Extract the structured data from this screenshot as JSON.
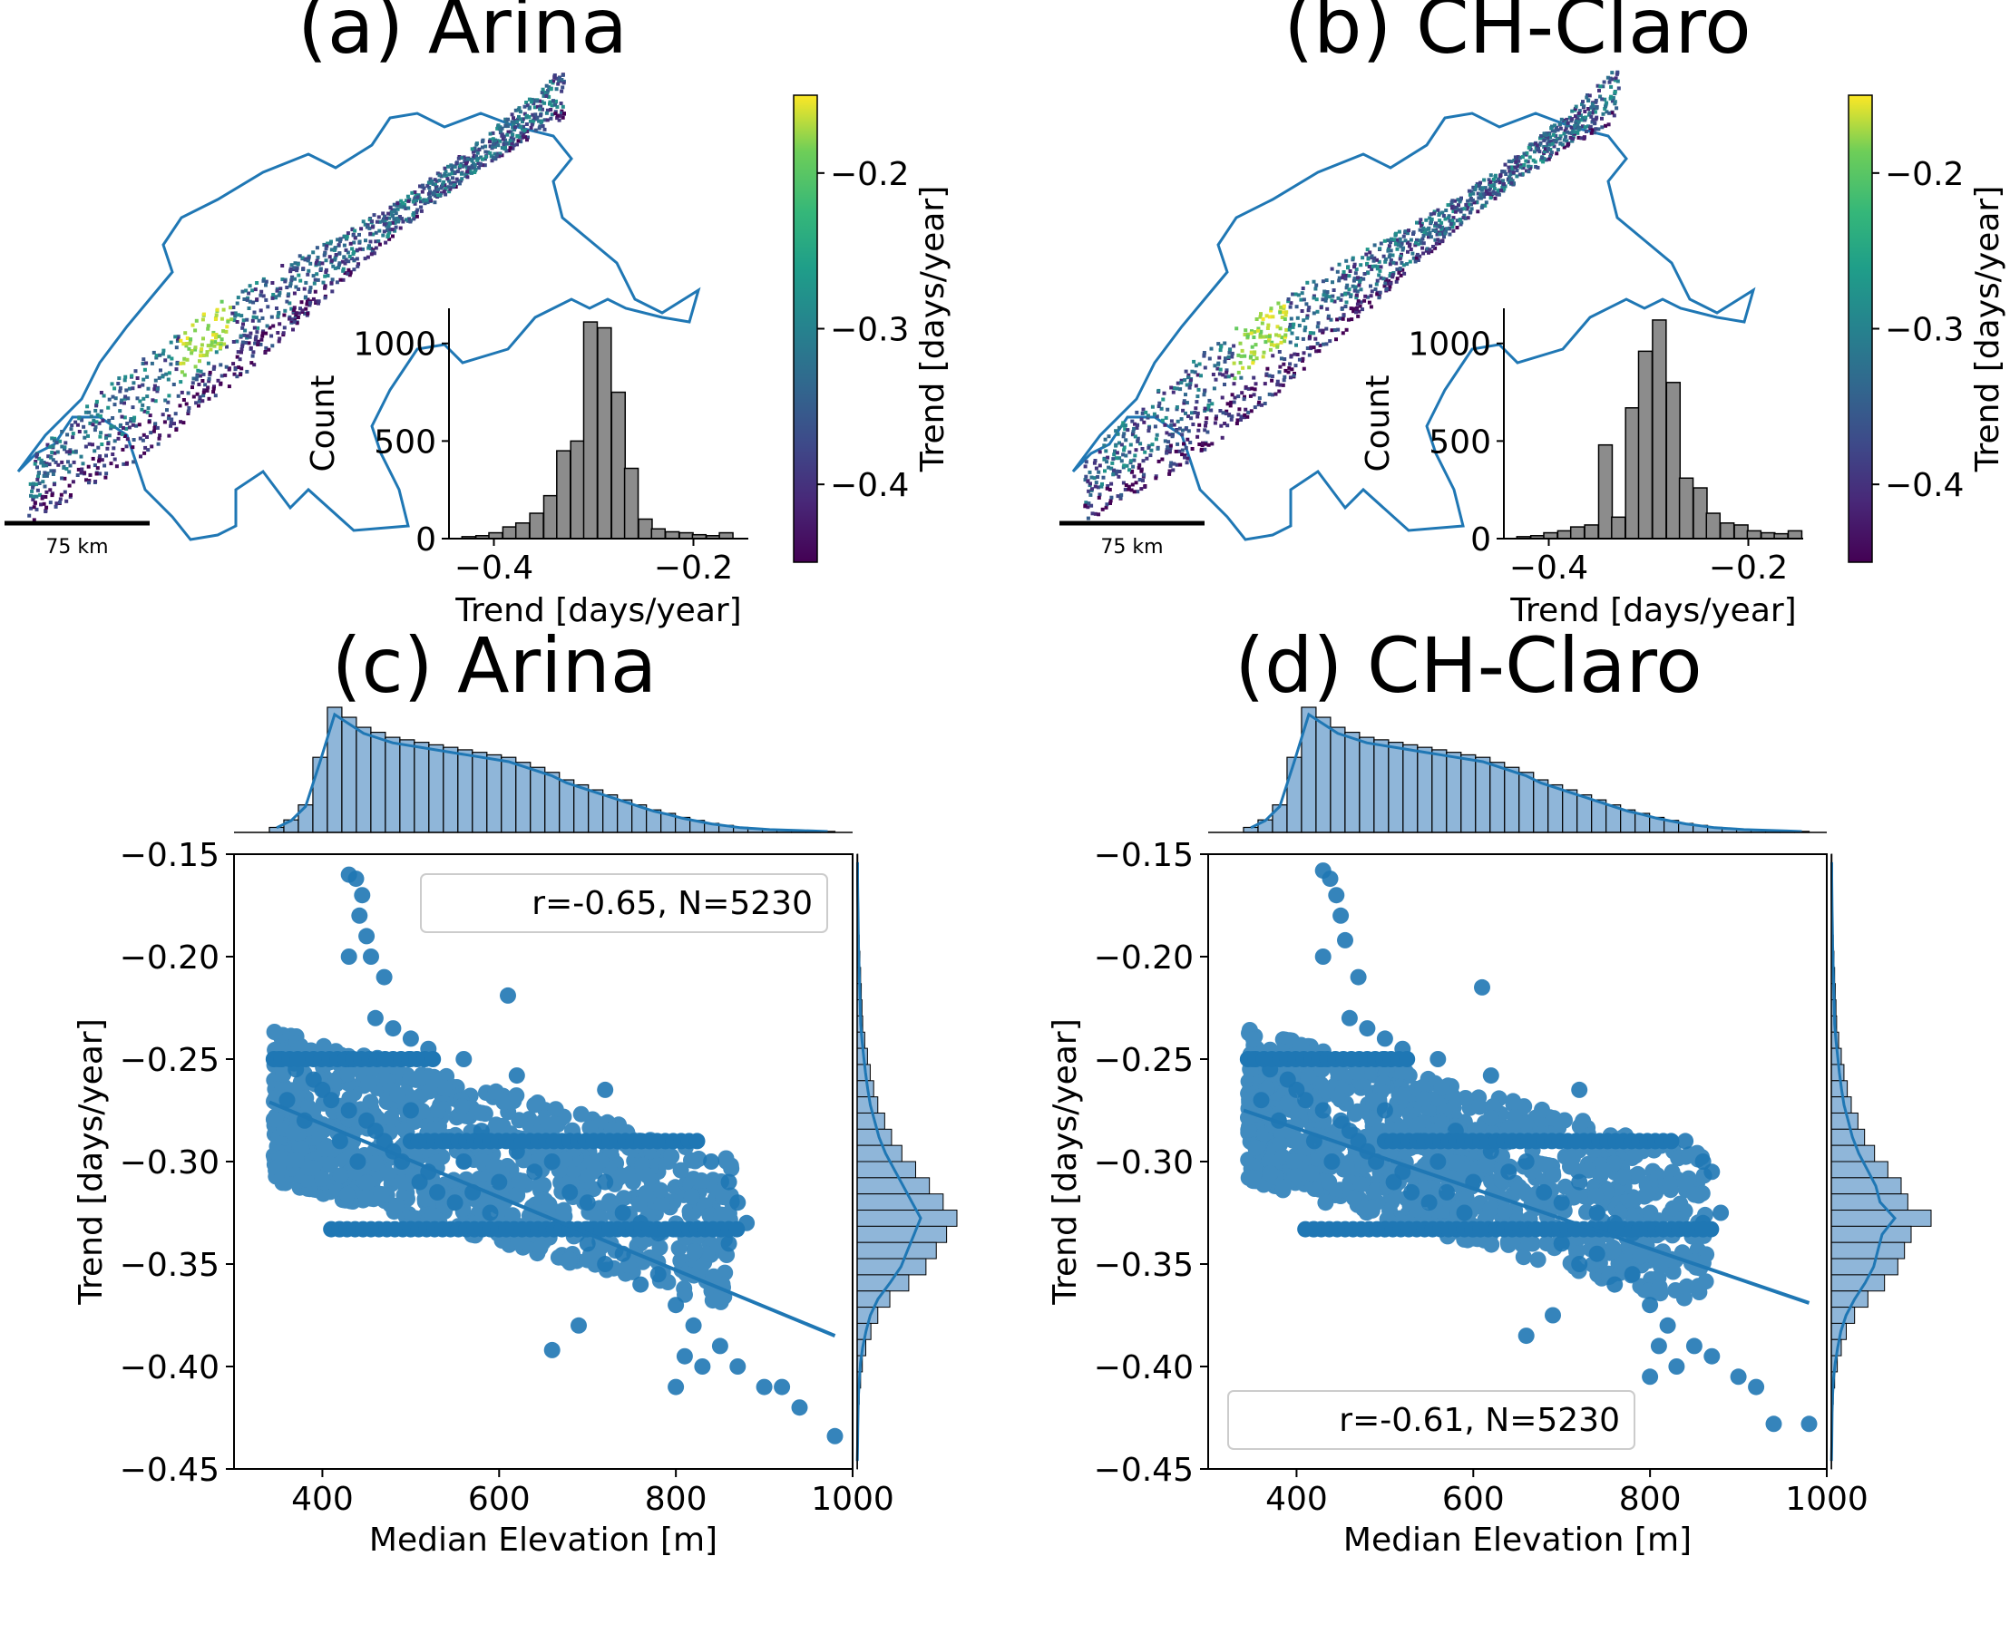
{
  "panels": [
    {
      "id": "a",
      "title": "(a) Arina"
    },
    {
      "id": "b",
      "title": "(b) CH-Claro"
    },
    {
      "id": "c",
      "title": "(c) Arina"
    },
    {
      "id": "d",
      "title": "(d) CH-Claro"
    }
  ],
  "scale_bar_label": "75 km",
  "colorbar": {
    "label": "Trend [days/year]",
    "range": [
      -0.45,
      -0.15
    ],
    "ticks": [
      -0.2,
      -0.3,
      -0.4
    ],
    "tick_labels": [
      "−0.2",
      "−0.3",
      "−0.4"
    ],
    "colormap": "viridis"
  },
  "colors": {
    "scatter": "#1f77b4",
    "hist_gray": "#8c8c8c",
    "hist_blue": "#8fb6d9",
    "map_outline": "#1f77b4"
  },
  "chart_data": [
    {
      "type": "bar",
      "panel": "a",
      "subtype": "histogram inset",
      "xlabel": "Trend [days/year]",
      "ylabel": "Count",
      "xlim": [
        -0.445,
        -0.145
      ],
      "ylim": [
        0,
        1180
      ],
      "xticks": [
        -0.4,
        -0.2
      ],
      "xtick_labels": [
        "−0.4",
        "−0.2"
      ],
      "yticks": [
        0,
        500,
        1000
      ],
      "ytick_labels": [
        "0",
        "500",
        "1000"
      ],
      "bin_width": 0.0136,
      "bin_starts": [
        -0.432,
        -0.418,
        -0.405,
        -0.391,
        -0.378,
        -0.364,
        -0.35,
        -0.337,
        -0.323,
        -0.31,
        -0.296,
        -0.282,
        -0.269,
        -0.255,
        -0.242,
        -0.228,
        -0.214,
        -0.201,
        -0.187,
        -0.174,
        -0.16
      ],
      "values": [
        10,
        15,
        30,
        60,
        80,
        130,
        220,
        450,
        500,
        1110,
        1080,
        750,
        360,
        100,
        50,
        35,
        30,
        20,
        15,
        30,
        0
      ]
    },
    {
      "type": "bar",
      "panel": "b",
      "subtype": "histogram inset",
      "xlabel": "Trend [days/year]",
      "ylabel": "Count",
      "xlim": [
        -0.445,
        -0.145
      ],
      "ylim": [
        0,
        1180
      ],
      "xticks": [
        -0.4,
        -0.2
      ],
      "xtick_labels": [
        "−0.4",
        "−0.2"
      ],
      "yticks": [
        0,
        500,
        1000
      ],
      "ytick_labels": [
        "0",
        "500",
        "1000"
      ],
      "bin_width": 0.0136,
      "bin_starts": [
        -0.432,
        -0.418,
        -0.405,
        -0.391,
        -0.378,
        -0.364,
        -0.35,
        -0.337,
        -0.323,
        -0.31,
        -0.296,
        -0.282,
        -0.269,
        -0.255,
        -0.242,
        -0.228,
        -0.214,
        -0.201,
        -0.187,
        -0.174,
        -0.16
      ],
      "values": [
        10,
        15,
        30,
        40,
        60,
        70,
        480,
        110,
        670,
        960,
        1120,
        800,
        310,
        260,
        130,
        80,
        70,
        40,
        30,
        25,
        40
      ]
    },
    {
      "type": "scatter",
      "panel": "c",
      "xlabel": "Median Elevation [m]",
      "ylabel": "Trend [days/year]",
      "xlim": [
        300,
        1000
      ],
      "ylim": [
        -0.45,
        -0.15
      ],
      "xticks": [
        400,
        600,
        800,
        1000
      ],
      "xtick_labels": [
        "400",
        "600",
        "800",
        "1000"
      ],
      "yticks": [
        -0.15,
        -0.2,
        -0.25,
        -0.3,
        -0.35,
        -0.4,
        -0.45
      ],
      "ytick_labels": [
        "−0.15",
        "−0.20",
        "−0.25",
        "−0.30",
        "−0.35",
        "−0.40",
        "−0.45"
      ],
      "legend": "r=-0.65, N=5230",
      "legend_position": "upper right",
      "regression": {
        "x": [
          340,
          980
        ],
        "y": [
          -0.271,
          -0.385
        ]
      },
      "points": [
        [
          430,
          -0.16
        ],
        [
          438,
          -0.162
        ],
        [
          445,
          -0.17
        ],
        [
          442,
          -0.18
        ],
        [
          450,
          -0.19
        ],
        [
          455,
          -0.2
        ],
        [
          430,
          -0.2
        ],
        [
          470,
          -0.21
        ],
        [
          610,
          -0.219
        ],
        [
          460,
          -0.23
        ],
        [
          480,
          -0.235
        ],
        [
          500,
          -0.24
        ],
        [
          520,
          -0.245
        ],
        [
          360,
          -0.27
        ],
        [
          380,
          -0.28
        ],
        [
          400,
          -0.265
        ],
        [
          420,
          -0.29
        ],
        [
          440,
          -0.3
        ],
        [
          460,
          -0.285
        ],
        [
          480,
          -0.295
        ],
        [
          500,
          -0.275
        ],
        [
          520,
          -0.305
        ],
        [
          540,
          -0.29
        ],
        [
          560,
          -0.3
        ],
        [
          580,
          -0.285
        ],
        [
          600,
          -0.31
        ],
        [
          620,
          -0.295
        ],
        [
          640,
          -0.305
        ],
        [
          660,
          -0.3
        ],
        [
          680,
          -0.315
        ],
        [
          700,
          -0.32
        ],
        [
          720,
          -0.31
        ],
        [
          740,
          -0.325
        ],
        [
          760,
          -0.33
        ],
        [
          780,
          -0.335
        ],
        [
          350,
          -0.25
        ],
        [
          370,
          -0.255
        ],
        [
          390,
          -0.26
        ],
        [
          410,
          -0.27
        ],
        [
          430,
          -0.275
        ],
        [
          450,
          -0.28
        ],
        [
          470,
          -0.29
        ],
        [
          490,
          -0.3
        ],
        [
          510,
          -0.31
        ],
        [
          530,
          -0.315
        ],
        [
          550,
          -0.32
        ],
        [
          570,
          -0.315
        ],
        [
          590,
          -0.325
        ],
        [
          700,
          -0.34
        ],
        [
          720,
          -0.35
        ],
        [
          740,
          -0.345
        ],
        [
          760,
          -0.36
        ],
        [
          780,
          -0.355
        ],
        [
          800,
          -0.37
        ],
        [
          820,
          -0.38
        ],
        [
          810,
          -0.395
        ],
        [
          830,
          -0.4
        ],
        [
          800,
          -0.41
        ],
        [
          850,
          -0.39
        ],
        [
          870,
          -0.4
        ],
        [
          900,
          -0.41
        ],
        [
          920,
          -0.41
        ],
        [
          940,
          -0.42
        ],
        [
          980,
          -0.434
        ],
        [
          660,
          -0.392
        ],
        [
          690,
          -0.38
        ],
        [
          860,
          -0.34
        ],
        [
          880,
          -0.33
        ],
        [
          420,
          -0.333
        ],
        [
          500,
          -0.333
        ],
        [
          600,
          -0.333
        ],
        [
          700,
          -0.333
        ],
        [
          800,
          -0.333
        ],
        [
          860,
          -0.333
        ],
        [
          430,
          -0.25
        ],
        [
          500,
          -0.25
        ],
        [
          560,
          -0.25
        ],
        [
          620,
          -0.258
        ],
        [
          720,
          -0.265
        ],
        [
          840,
          -0.3
        ],
        [
          860,
          -0.31
        ],
        [
          870,
          -0.32
        ]
      ],
      "top_hist": [
        10,
        25,
        55,
        150,
        250,
        230,
        210,
        200,
        190,
        185,
        180,
        175,
        170,
        165,
        160,
        155,
        150,
        140,
        130,
        120,
        105,
        95,
        85,
        75,
        65,
        55,
        45,
        38,
        30,
        24,
        18,
        14,
        10,
        8,
        6,
        5,
        4,
        3,
        2
      ],
      "right_hist": [
        2,
        2,
        3,
        4,
        5,
        6,
        8,
        10,
        12,
        14,
        16,
        22,
        30,
        38,
        48,
        60,
        80,
        100,
        130,
        170,
        210,
        250,
        290,
        260,
        230,
        200,
        150,
        95,
        60,
        40,
        25,
        15,
        10,
        6,
        4,
        3,
        2,
        1
      ]
    },
    {
      "type": "scatter",
      "panel": "d",
      "xlabel": "Median Elevation [m]",
      "ylabel": "Trend [days/year]",
      "xlim": [
        300,
        1000
      ],
      "ylim": [
        -0.45,
        -0.15
      ],
      "xticks": [
        400,
        600,
        800,
        1000
      ],
      "xtick_labels": [
        "400",
        "600",
        "800",
        "1000"
      ],
      "yticks": [
        -0.15,
        -0.2,
        -0.25,
        -0.3,
        -0.35,
        -0.4,
        -0.45
      ],
      "ytick_labels": [
        "−0.15",
        "−0.20",
        "−0.25",
        "−0.30",
        "−0.35",
        "−0.40",
        "−0.45"
      ],
      "legend": "r=-0.61, N=5230",
      "legend_position": "lower left",
      "regression": {
        "x": [
          340,
          980
        ],
        "y": [
          -0.275,
          -0.369
        ]
      },
      "points": [
        [
          430,
          -0.158
        ],
        [
          438,
          -0.162
        ],
        [
          445,
          -0.17
        ],
        [
          450,
          -0.18
        ],
        [
          455,
          -0.192
        ],
        [
          430,
          -0.2
        ],
        [
          470,
          -0.21
        ],
        [
          610,
          -0.215
        ],
        [
          460,
          -0.23
        ],
        [
          480,
          -0.235
        ],
        [
          500,
          -0.24
        ],
        [
          520,
          -0.245
        ],
        [
          360,
          -0.27
        ],
        [
          380,
          -0.28
        ],
        [
          400,
          -0.265
        ],
        [
          420,
          -0.29
        ],
        [
          440,
          -0.3
        ],
        [
          460,
          -0.285
        ],
        [
          480,
          -0.295
        ],
        [
          500,
          -0.275
        ],
        [
          520,
          -0.305
        ],
        [
          540,
          -0.29
        ],
        [
          560,
          -0.3
        ],
        [
          580,
          -0.285
        ],
        [
          600,
          -0.31
        ],
        [
          620,
          -0.295
        ],
        [
          640,
          -0.305
        ],
        [
          660,
          -0.3
        ],
        [
          680,
          -0.315
        ],
        [
          700,
          -0.32
        ],
        [
          720,
          -0.31
        ],
        [
          740,
          -0.325
        ],
        [
          760,
          -0.33
        ],
        [
          780,
          -0.335
        ],
        [
          350,
          -0.25
        ],
        [
          370,
          -0.255
        ],
        [
          390,
          -0.26
        ],
        [
          410,
          -0.27
        ],
        [
          430,
          -0.275
        ],
        [
          450,
          -0.28
        ],
        [
          470,
          -0.29
        ],
        [
          490,
          -0.3
        ],
        [
          510,
          -0.31
        ],
        [
          530,
          -0.315
        ],
        [
          550,
          -0.32
        ],
        [
          570,
          -0.315
        ],
        [
          590,
          -0.325
        ],
        [
          700,
          -0.34
        ],
        [
          720,
          -0.35
        ],
        [
          740,
          -0.345
        ],
        [
          760,
          -0.36
        ],
        [
          780,
          -0.355
        ],
        [
          800,
          -0.37
        ],
        [
          820,
          -0.38
        ],
        [
          810,
          -0.39
        ],
        [
          830,
          -0.4
        ],
        [
          800,
          -0.405
        ],
        [
          850,
          -0.39
        ],
        [
          870,
          -0.395
        ],
        [
          900,
          -0.405
        ],
        [
          920,
          -0.41
        ],
        [
          940,
          -0.428
        ],
        [
          980,
          -0.428
        ],
        [
          660,
          -0.385
        ],
        [
          690,
          -0.375
        ],
        [
          860,
          -0.33
        ],
        [
          880,
          -0.325
        ],
        [
          420,
          -0.333
        ],
        [
          500,
          -0.333
        ],
        [
          600,
          -0.333
        ],
        [
          700,
          -0.333
        ],
        [
          800,
          -0.333
        ],
        [
          860,
          -0.333
        ],
        [
          430,
          -0.25
        ],
        [
          500,
          -0.25
        ],
        [
          560,
          -0.25
        ],
        [
          620,
          -0.258
        ],
        [
          720,
          -0.265
        ],
        [
          840,
          -0.29
        ],
        [
          860,
          -0.3
        ],
        [
          870,
          -0.305
        ]
      ],
      "top_hist": [
        10,
        25,
        55,
        150,
        250,
        230,
        210,
        200,
        190,
        185,
        180,
        175,
        170,
        165,
        160,
        155,
        150,
        140,
        130,
        120,
        105,
        95,
        85,
        75,
        65,
        55,
        45,
        38,
        30,
        24,
        18,
        14,
        10,
        8,
        6,
        5,
        4,
        3,
        2
      ],
      "right_hist": [
        2,
        2,
        3,
        4,
        5,
        6,
        8,
        10,
        12,
        14,
        16,
        22,
        30,
        38,
        48,
        60,
        80,
        100,
        130,
        170,
        210,
        230,
        300,
        240,
        220,
        200,
        160,
        110,
        70,
        45,
        30,
        18,
        10,
        6,
        4,
        3,
        2,
        1
      ]
    }
  ]
}
